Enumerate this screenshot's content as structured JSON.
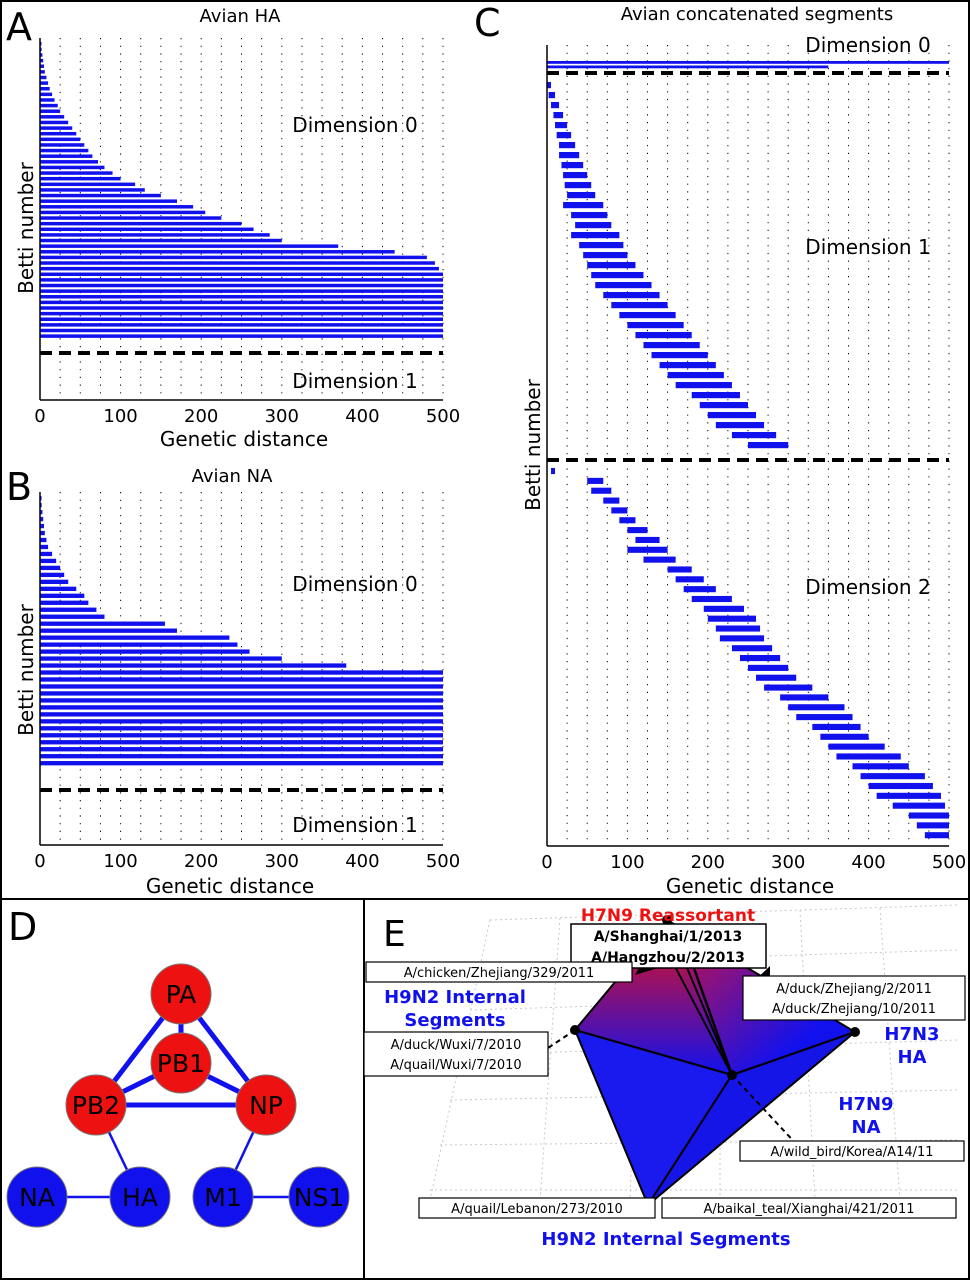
{
  "panels": {
    "A": {
      "letter": "A",
      "title": "Avian HA",
      "dim_top_label": "Dimension 0",
      "dim_bottom_label": "Dimension 1",
      "ylabel": "Betti number",
      "xlabel": "Genetic distance",
      "xticks": [
        "0",
        "100",
        "200",
        "300",
        "400",
        "500"
      ]
    },
    "B": {
      "letter": "B",
      "title": "Avian NA",
      "dim_top_label": "Dimension 0",
      "dim_bottom_label": "Dimension 1",
      "ylabel": "Betti number",
      "xlabel": "Genetic distance",
      "xticks": [
        "0",
        "100",
        "200",
        "300",
        "400",
        "500"
      ]
    },
    "C": {
      "letter": "C",
      "title": "Avian concatenated segments",
      "dim0_label": "Dimension 0",
      "dim1_label": "Dimension 1",
      "dim2_label": "Dimension 2",
      "ylabel": "Betti number",
      "xlabel": "Genetic distance",
      "xticks": [
        "0",
        "100",
        "200",
        "300",
        "400",
        "500"
      ]
    },
    "D": {
      "letter": "D",
      "nodes": [
        {
          "id": "PA",
          "label": "PA",
          "color": "#ee1111"
        },
        {
          "id": "PB1",
          "label": "PB1",
          "color": "#ee1111"
        },
        {
          "id": "PB2",
          "label": "PB2",
          "color": "#ee1111"
        },
        {
          "id": "NP",
          "label": "NP",
          "color": "#ee1111"
        },
        {
          "id": "NA",
          "label": "NA",
          "color": "#1111ee"
        },
        {
          "id": "HA",
          "label": "HA",
          "color": "#1111ee"
        },
        {
          "id": "M1",
          "label": "M1",
          "color": "#1111ee"
        },
        {
          "id": "NS1",
          "label": "NS1",
          "color": "#1111ee"
        }
      ],
      "edges": [
        {
          "from": "PA",
          "to": "PB1",
          "weight": "thick"
        },
        {
          "from": "PA",
          "to": "PB2",
          "weight": "thick"
        },
        {
          "from": "PA",
          "to": "NP",
          "weight": "thick"
        },
        {
          "from": "PB1",
          "to": "PB2",
          "weight": "thick"
        },
        {
          "from": "PB1",
          "to": "NP",
          "weight": "thick"
        },
        {
          "from": "PB2",
          "to": "NP",
          "weight": "thick"
        },
        {
          "from": "PB2",
          "to": "HA",
          "weight": "thin"
        },
        {
          "from": "NP",
          "to": "M1",
          "weight": "thin"
        },
        {
          "from": "NA",
          "to": "HA",
          "weight": "thin"
        },
        {
          "from": "M1",
          "to": "NS1",
          "weight": "thin"
        }
      ]
    },
    "E": {
      "letter": "E",
      "title": "H7N9 Reassortant",
      "strains_top": [
        "A/Shanghai/1/2013",
        "A/Hangzhou/2/2013"
      ],
      "strain_chicken": "A/chicken/Zhejiang/329/2011",
      "group_h9n2_left": [
        "H9N2 Internal",
        "Segments"
      ],
      "strains_duck_quail": [
        "A/duck/Wuxi/7/2010",
        "A/quail/Wuxi/7/2010"
      ],
      "strains_duck_zhejiang": [
        "A/duck/Zhejiang/2/2011",
        "A/duck/Zhejiang/10/2011"
      ],
      "group_h7n3": [
        "H7N3",
        "HA"
      ],
      "group_h7n9": [
        "H7N9",
        "NA"
      ],
      "strain_wild_bird": "A/wild_bird/Korea/A14/11",
      "strain_quail_lebanon": "A/quail/Lebanon/273/2010",
      "strain_baikal_teal": "A/baikal_teal/Xianghai/421/2011",
      "group_h9n2_bottom": "H9N2 Internal Segments",
      "colors": {
        "red": "#ee1111",
        "blue": "#1111ee"
      }
    }
  },
  "chart_data": [
    {
      "panel": "A",
      "type": "barcode",
      "title": "Avian HA",
      "xlabel": "Genetic distance",
      "ylabel": "Betti number",
      "xlim": [
        0,
        500
      ],
      "grid": true,
      "dimension_0_bars": [
        {
          "start": 0,
          "end": 1
        },
        {
          "start": 0,
          "end": 2
        },
        {
          "start": 0,
          "end": 3
        },
        {
          "start": 0,
          "end": 4
        },
        {
          "start": 0,
          "end": 5
        },
        {
          "start": 0,
          "end": 6
        },
        {
          "start": 0,
          "end": 8
        },
        {
          "start": 0,
          "end": 10
        },
        {
          "start": 0,
          "end": 12
        },
        {
          "start": 0,
          "end": 15
        },
        {
          "start": 0,
          "end": 18
        },
        {
          "start": 0,
          "end": 22
        },
        {
          "start": 0,
          "end": 25
        },
        {
          "start": 0,
          "end": 30
        },
        {
          "start": 0,
          "end": 35
        },
        {
          "start": 0,
          "end": 40
        },
        {
          "start": 0,
          "end": 45
        },
        {
          "start": 0,
          "end": 50
        },
        {
          "start": 0,
          "end": 55
        },
        {
          "start": 0,
          "end": 60
        },
        {
          "start": 0,
          "end": 65
        },
        {
          "start": 0,
          "end": 72
        },
        {
          "start": 0,
          "end": 80
        },
        {
          "start": 0,
          "end": 90
        },
        {
          "start": 0,
          "end": 100
        },
        {
          "start": 0,
          "end": 118
        },
        {
          "start": 0,
          "end": 130
        },
        {
          "start": 0,
          "end": 150
        },
        {
          "start": 0,
          "end": 170
        },
        {
          "start": 0,
          "end": 190
        },
        {
          "start": 0,
          "end": 205
        },
        {
          "start": 0,
          "end": 225
        },
        {
          "start": 0,
          "end": 250
        },
        {
          "start": 0,
          "end": 265
        },
        {
          "start": 0,
          "end": 285
        },
        {
          "start": 0,
          "end": 300
        },
        {
          "start": 0,
          "end": 370
        },
        {
          "start": 0,
          "end": 440
        },
        {
          "start": 0,
          "end": 480
        },
        {
          "start": 0,
          "end": 490
        },
        {
          "start": 0,
          "end": 495
        },
        {
          "start": 0,
          "end": 500
        },
        {
          "start": 0,
          "end": 500
        },
        {
          "start": 0,
          "end": 500
        },
        {
          "start": 0,
          "end": 500
        },
        {
          "start": 0,
          "end": 500
        },
        {
          "start": 0,
          "end": 500
        },
        {
          "start": 0,
          "end": 500
        },
        {
          "start": 0,
          "end": 500
        },
        {
          "start": 0,
          "end": 500
        },
        {
          "start": 0,
          "end": 500
        },
        {
          "start": 0,
          "end": 500
        },
        {
          "start": 0,
          "end": 500
        }
      ],
      "dimension_1_bars": []
    },
    {
      "panel": "B",
      "type": "barcode",
      "title": "Avian NA",
      "xlabel": "Genetic distance",
      "ylabel": "Betti number",
      "xlim": [
        0,
        500
      ],
      "grid": true,
      "dimension_0_bars": [
        {
          "start": 0,
          "end": 1
        },
        {
          "start": 0,
          "end": 2
        },
        {
          "start": 0,
          "end": 3
        },
        {
          "start": 0,
          "end": 4
        },
        {
          "start": 0,
          "end": 5
        },
        {
          "start": 0,
          "end": 6
        },
        {
          "start": 0,
          "end": 8
        },
        {
          "start": 0,
          "end": 10
        },
        {
          "start": 0,
          "end": 15
        },
        {
          "start": 0,
          "end": 20
        },
        {
          "start": 0,
          "end": 25
        },
        {
          "start": 0,
          "end": 30
        },
        {
          "start": 0,
          "end": 35
        },
        {
          "start": 0,
          "end": 45
        },
        {
          "start": 0,
          "end": 55
        },
        {
          "start": 0,
          "end": 60
        },
        {
          "start": 0,
          "end": 70
        },
        {
          "start": 0,
          "end": 80
        },
        {
          "start": 0,
          "end": 155
        },
        {
          "start": 0,
          "end": 170
        },
        {
          "start": 0,
          "end": 235
        },
        {
          "start": 0,
          "end": 245
        },
        {
          "start": 0,
          "end": 260
        },
        {
          "start": 0,
          "end": 300
        },
        {
          "start": 0,
          "end": 380
        },
        {
          "start": 0,
          "end": 500
        },
        {
          "start": 0,
          "end": 500
        },
        {
          "start": 0,
          "end": 500
        },
        {
          "start": 0,
          "end": 500
        },
        {
          "start": 0,
          "end": 500
        },
        {
          "start": 0,
          "end": 500
        },
        {
          "start": 0,
          "end": 500
        },
        {
          "start": 0,
          "end": 500
        },
        {
          "start": 0,
          "end": 500
        },
        {
          "start": 0,
          "end": 500
        },
        {
          "start": 0,
          "end": 500
        },
        {
          "start": 0,
          "end": 500
        },
        {
          "start": 0,
          "end": 500
        },
        {
          "start": 0,
          "end": 500
        }
      ],
      "dimension_1_bars": []
    },
    {
      "panel": "C",
      "type": "barcode",
      "title": "Avian concatenated segments",
      "xlabel": "Genetic distance",
      "ylabel": "Betti number",
      "xlim": [
        0,
        500
      ],
      "grid": true,
      "dimension_0_bars": [
        {
          "start": 0,
          "end": 500
        },
        {
          "start": 0,
          "end": 350
        }
      ],
      "dimension_1_bars": [
        {
          "start": 0,
          "end": 5
        },
        {
          "start": 2,
          "end": 10
        },
        {
          "start": 5,
          "end": 15
        },
        {
          "start": 8,
          "end": 20
        },
        {
          "start": 10,
          "end": 25
        },
        {
          "start": 12,
          "end": 30
        },
        {
          "start": 15,
          "end": 35
        },
        {
          "start": 15,
          "end": 40
        },
        {
          "start": 18,
          "end": 45
        },
        {
          "start": 20,
          "end": 50
        },
        {
          "start": 22,
          "end": 55
        },
        {
          "start": 25,
          "end": 60
        },
        {
          "start": 20,
          "end": 70
        },
        {
          "start": 30,
          "end": 75
        },
        {
          "start": 35,
          "end": 80
        },
        {
          "start": 30,
          "end": 90
        },
        {
          "start": 40,
          "end": 95
        },
        {
          "start": 45,
          "end": 100
        },
        {
          "start": 50,
          "end": 110
        },
        {
          "start": 55,
          "end": 120
        },
        {
          "start": 60,
          "end": 130
        },
        {
          "start": 70,
          "end": 140
        },
        {
          "start": 80,
          "end": 150
        },
        {
          "start": 90,
          "end": 160
        },
        {
          "start": 100,
          "end": 170
        },
        {
          "start": 110,
          "end": 180
        },
        {
          "start": 120,
          "end": 190
        },
        {
          "start": 130,
          "end": 200
        },
        {
          "start": 140,
          "end": 210
        },
        {
          "start": 150,
          "end": 220
        },
        {
          "start": 160,
          "end": 230
        },
        {
          "start": 180,
          "end": 240
        },
        {
          "start": 190,
          "end": 250
        },
        {
          "start": 200,
          "end": 260
        },
        {
          "start": 210,
          "end": 270
        },
        {
          "start": 230,
          "end": 285
        },
        {
          "start": 250,
          "end": 300
        }
      ],
      "dimension_2_bars": [
        {
          "start": 5,
          "end": 10
        },
        {
          "start": 50,
          "end": 70
        },
        {
          "start": 55,
          "end": 80
        },
        {
          "start": 70,
          "end": 90
        },
        {
          "start": 80,
          "end": 100
        },
        {
          "start": 90,
          "end": 110
        },
        {
          "start": 100,
          "end": 125
        },
        {
          "start": 110,
          "end": 140
        },
        {
          "start": 100,
          "end": 150
        },
        {
          "start": 120,
          "end": 160
        },
        {
          "start": 150,
          "end": 180
        },
        {
          "start": 160,
          "end": 195
        },
        {
          "start": 170,
          "end": 210
        },
        {
          "start": 180,
          "end": 230
        },
        {
          "start": 195,
          "end": 245
        },
        {
          "start": 200,
          "end": 260
        },
        {
          "start": 210,
          "end": 265
        },
        {
          "start": 215,
          "end": 270
        },
        {
          "start": 230,
          "end": 280
        },
        {
          "start": 240,
          "end": 290
        },
        {
          "start": 250,
          "end": 300
        },
        {
          "start": 260,
          "end": 310
        },
        {
          "start": 270,
          "end": 330
        },
        {
          "start": 290,
          "end": 350
        },
        {
          "start": 300,
          "end": 370
        },
        {
          "start": 310,
          "end": 380
        },
        {
          "start": 330,
          "end": 390
        },
        {
          "start": 340,
          "end": 400
        },
        {
          "start": 350,
          "end": 420
        },
        {
          "start": 360,
          "end": 440
        },
        {
          "start": 380,
          "end": 450
        },
        {
          "start": 390,
          "end": 470
        },
        {
          "start": 400,
          "end": 480
        },
        {
          "start": 410,
          "end": 490
        },
        {
          "start": 430,
          "end": 495
        },
        {
          "start": 450,
          "end": 500
        },
        {
          "start": 460,
          "end": 500
        },
        {
          "start": 470,
          "end": 500
        }
      ]
    }
  ]
}
